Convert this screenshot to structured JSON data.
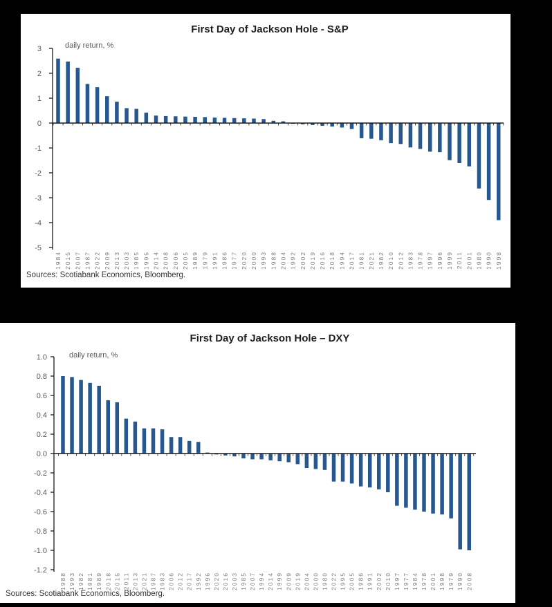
{
  "page": {
    "background": "#000000",
    "panel_background": "#ffffff"
  },
  "chart_data": [
    {
      "type": "bar",
      "title": "First Day of Jackson Hole - S&P",
      "ylabel": "daily return, %",
      "xlabel": "",
      "source": "Sources: Scotiabank Economics, Bloomberg.",
      "bar_color": "#27578F",
      "axis_color": "#1a1a1a",
      "tick_label_color": "#7f7f7f",
      "ytick_label_color": "#595959",
      "ylim": [
        -5,
        3
      ],
      "grid": false,
      "legend_position": "none",
      "yticks": [
        3,
        2,
        1,
        0,
        -1,
        -2,
        -3,
        -4,
        -5
      ],
      "ytick_labels": [
        "3",
        "2",
        "1",
        "0",
        "-1",
        "-2",
        "-3",
        "-4",
        "-5"
      ],
      "categories": [
        "1984",
        "2015",
        "2007",
        "1987",
        "2022",
        "2009",
        "2013",
        "2003",
        "1985",
        "1995",
        "2014",
        "2008",
        "2006",
        "2005",
        "1989",
        "1979",
        "1991",
        "1986",
        "1977",
        "2020",
        "2000",
        "1993",
        "1988",
        "2004",
        "1992",
        "2002",
        "2019",
        "2016",
        "2018",
        "1994",
        "2017",
        "1981",
        "2021",
        "1982",
        "2010",
        "2012",
        "1983",
        "1978",
        "1997",
        "1996",
        "1999",
        "2011",
        "2001",
        "1980",
        "1990",
        "1998"
      ],
      "values": [
        2.59,
        2.47,
        2.22,
        1.57,
        1.44,
        1.08,
        0.86,
        0.6,
        0.57,
        0.42,
        0.3,
        0.28,
        0.27,
        0.26,
        0.25,
        0.24,
        0.22,
        0.21,
        0.2,
        0.19,
        0.18,
        0.16,
        0.09,
        0.07,
        -0.03,
        -0.05,
        -0.08,
        -0.11,
        -0.14,
        -0.18,
        -0.24,
        -0.61,
        -0.63,
        -0.69,
        -0.81,
        -0.84,
        -0.98,
        -1.04,
        -1.15,
        -1.17,
        -1.49,
        -1.61,
        -1.74,
        -2.63,
        -3.09,
        -3.9
      ]
    },
    {
      "type": "bar",
      "title": "First Day of Jackson Hole – DXY",
      "ylabel": "daily return, %",
      "xlabel": "",
      "source": "Sources: Scotiabank Economics, Bloomberg.",
      "bar_color": "#27578F",
      "axis_color": "#1a1a1a",
      "tick_label_color": "#7f7f7f",
      "ytick_label_color": "#595959",
      "ylim": [
        -1.2,
        1.0
      ],
      "grid": false,
      "legend_position": "none",
      "yticks": [
        1.0,
        0.8,
        0.6,
        0.4,
        0.2,
        0.0,
        -0.2,
        -0.4,
        -0.6,
        -0.8,
        -1.0,
        -1.2
      ],
      "ytick_labels": [
        "1.0",
        "0.8",
        "0.6",
        "0.4",
        "0.2",
        "0.0",
        "-0.2",
        "-0.4",
        "-0.6",
        "-0.8",
        "-1.0",
        "-1.2"
      ],
      "categories": [
        "1988",
        "1993",
        "1982",
        "1981",
        "1989",
        "2018",
        "2015",
        "2011",
        "2013",
        "2021",
        "1987",
        "1983",
        "2006",
        "2012",
        "2017",
        "1992",
        "1996",
        "2020",
        "2016",
        "2003",
        "1985",
        "2007",
        "1994",
        "2014",
        "1999",
        "2009",
        "2019",
        "2004",
        "2000",
        "1980",
        "2022",
        "1995",
        "2005",
        "1986",
        "1991",
        "2002",
        "2010",
        "1997",
        "1977",
        "1984",
        "1978",
        "2001",
        "1998",
        "1979",
        "1990",
        "2008"
      ],
      "values": [
        0.8,
        0.79,
        0.76,
        0.73,
        0.7,
        0.55,
        0.53,
        0.36,
        0.33,
        0.26,
        0.26,
        0.25,
        0.17,
        0.17,
        0.13,
        0.12,
        0.01,
        -0.01,
        -0.02,
        -0.03,
        -0.05,
        -0.06,
        -0.06,
        -0.07,
        -0.08,
        -0.09,
        -0.11,
        -0.15,
        -0.16,
        -0.17,
        -0.29,
        -0.29,
        -0.31,
        -0.34,
        -0.35,
        -0.37,
        -0.4,
        -0.54,
        -0.56,
        -0.58,
        -0.6,
        -0.62,
        -0.63,
        -0.67,
        -0.99,
        -1.0
      ]
    }
  ]
}
